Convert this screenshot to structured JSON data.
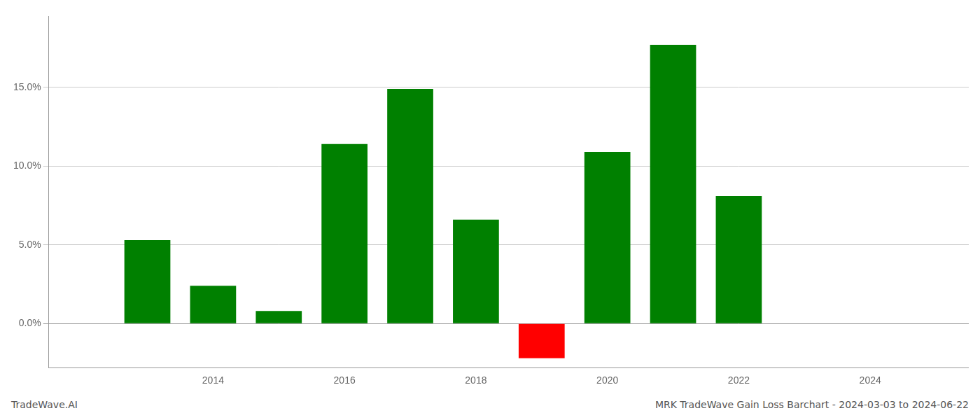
{
  "chart_data": {
    "type": "bar",
    "title": "MRK TradeWave Gain Loss Barchart - 2024-03-03 to 2024-06-22",
    "annotations": [
      "TradeWave.AI"
    ],
    "x": [
      2013,
      2014,
      2015,
      2016,
      2017,
      2018,
      2019,
      2020,
      2021,
      2022,
      2023
    ],
    "values": [
      0.053,
      0.024,
      0.008,
      0.114,
      0.149,
      0.066,
      -0.022,
      0.109,
      0.177,
      0.081,
      null
    ],
    "colors": [
      "#008000",
      "#008000",
      "#008000",
      "#008000",
      "#008000",
      "#008000",
      "#ff0000",
      "#008000",
      "#008000",
      "#008000",
      null
    ],
    "xlim": [
      2011.5,
      2025.5
    ],
    "xticks": [
      2014,
      2016,
      2018,
      2020,
      2022,
      2024
    ],
    "ylim": [
      -0.028,
      0.195
    ],
    "yticks": [
      {
        "value": 0.0,
        "label": "0.0%"
      },
      {
        "value": 0.05,
        "label": "5.0%"
      },
      {
        "value": 0.1,
        "label": "10.0%"
      },
      {
        "value": 0.15,
        "label": "15.0%"
      }
    ],
    "grid": "y"
  }
}
